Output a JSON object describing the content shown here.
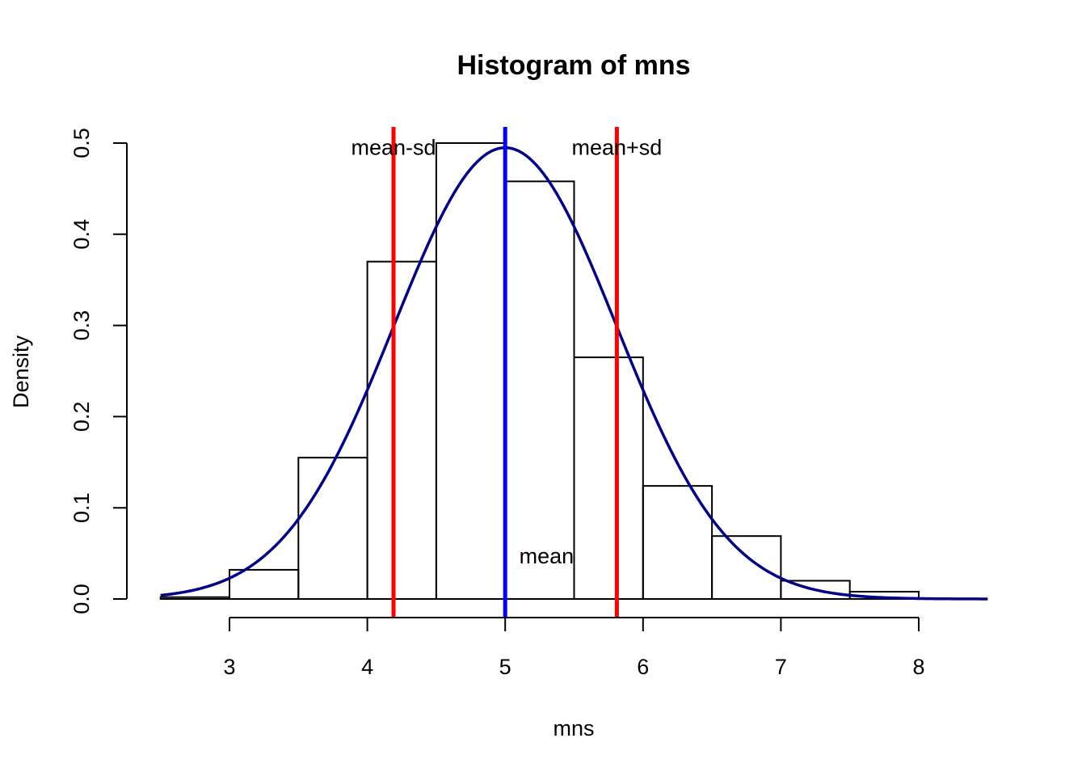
{
  "chart_data": {
    "type": "histogram",
    "title": "Histogram of mns",
    "xlabel": "mns",
    "ylabel": "Density",
    "xlim": [
      2.5,
      8.5
    ],
    "ylim": [
      0,
      0.5
    ],
    "x_ticks": [
      3,
      4,
      5,
      6,
      7,
      8
    ],
    "y_ticks": [
      0.0,
      0.1,
      0.2,
      0.3,
      0.4,
      0.5
    ],
    "y_tick_labels": [
      "0.0",
      "0.1",
      "0.2",
      "0.3",
      "0.4",
      "0.5"
    ],
    "bins": [
      {
        "start": 2.5,
        "end": 3.0,
        "density": 0.002
      },
      {
        "start": 3.0,
        "end": 3.5,
        "density": 0.032
      },
      {
        "start": 3.5,
        "end": 4.0,
        "density": 0.155
      },
      {
        "start": 4.0,
        "end": 4.5,
        "density": 0.37
      },
      {
        "start": 4.5,
        "end": 5.0,
        "density": 0.5
      },
      {
        "start": 5.0,
        "end": 5.5,
        "density": 0.458
      },
      {
        "start": 5.5,
        "end": 6.0,
        "density": 0.265
      },
      {
        "start": 6.0,
        "end": 6.5,
        "density": 0.124
      },
      {
        "start": 6.5,
        "end": 7.0,
        "density": 0.069
      },
      {
        "start": 7.0,
        "end": 7.5,
        "density": 0.02
      },
      {
        "start": 7.5,
        "end": 8.0,
        "density": 0.008
      }
    ],
    "curve": {
      "type": "normal-density",
      "mean": 5.0,
      "sd": 0.806,
      "color": "#00008B"
    },
    "vlines": [
      {
        "x": 4.19,
        "color": "#FF0000"
      },
      {
        "x": 5.0,
        "color": "#0000FF"
      },
      {
        "x": 5.81,
        "color": "#FF0000"
      }
    ],
    "annotations": [
      {
        "text": "mean-sd",
        "x": 4.19,
        "y": 0.495
      },
      {
        "text": "mean+sd",
        "x": 5.81,
        "y": 0.495
      },
      {
        "text": "mean",
        "x": 5.3,
        "y": 0.047
      }
    ]
  }
}
